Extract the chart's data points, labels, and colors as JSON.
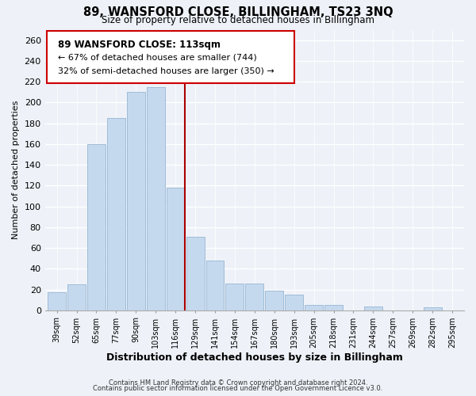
{
  "title": "89, WANSFORD CLOSE, BILLINGHAM, TS23 3NQ",
  "subtitle": "Size of property relative to detached houses in Billingham",
  "xlabel": "Distribution of detached houses by size in Billingham",
  "ylabel": "Number of detached properties",
  "categories": [
    "39sqm",
    "52sqm",
    "65sqm",
    "77sqm",
    "90sqm",
    "103sqm",
    "116sqm",
    "129sqm",
    "141sqm",
    "154sqm",
    "167sqm",
    "180sqm",
    "193sqm",
    "205sqm",
    "218sqm",
    "231sqm",
    "244sqm",
    "257sqm",
    "269sqm",
    "282sqm",
    "295sqm"
  ],
  "values": [
    17,
    25,
    160,
    185,
    210,
    215,
    118,
    71,
    48,
    26,
    26,
    19,
    15,
    5,
    5,
    0,
    4,
    0,
    0,
    3,
    0
  ],
  "bar_color": "#c5d9ee",
  "bar_edge_color": "#a0bcd8",
  "red_line_index": 6,
  "red_line_color": "#aa0000",
  "ylim": [
    0,
    270
  ],
  "yticks": [
    0,
    20,
    40,
    60,
    80,
    100,
    120,
    140,
    160,
    180,
    200,
    220,
    240,
    260
  ],
  "annotation_title": "89 WANSFORD CLOSE: 113sqm",
  "annotation_line1": "← 67% of detached houses are smaller (744)",
  "annotation_line2": "32% of semi-detached houses are larger (350) →",
  "annotation_box_color": "#ffffff",
  "annotation_box_edge": "#cc0000",
  "footer1": "Contains HM Land Registry data © Crown copyright and database right 2024.",
  "footer2": "Contains public sector information licensed under the Open Government Licence v3.0.",
  "bg_color": "#eef2f8",
  "plot_bg_color": "#eef2f8"
}
